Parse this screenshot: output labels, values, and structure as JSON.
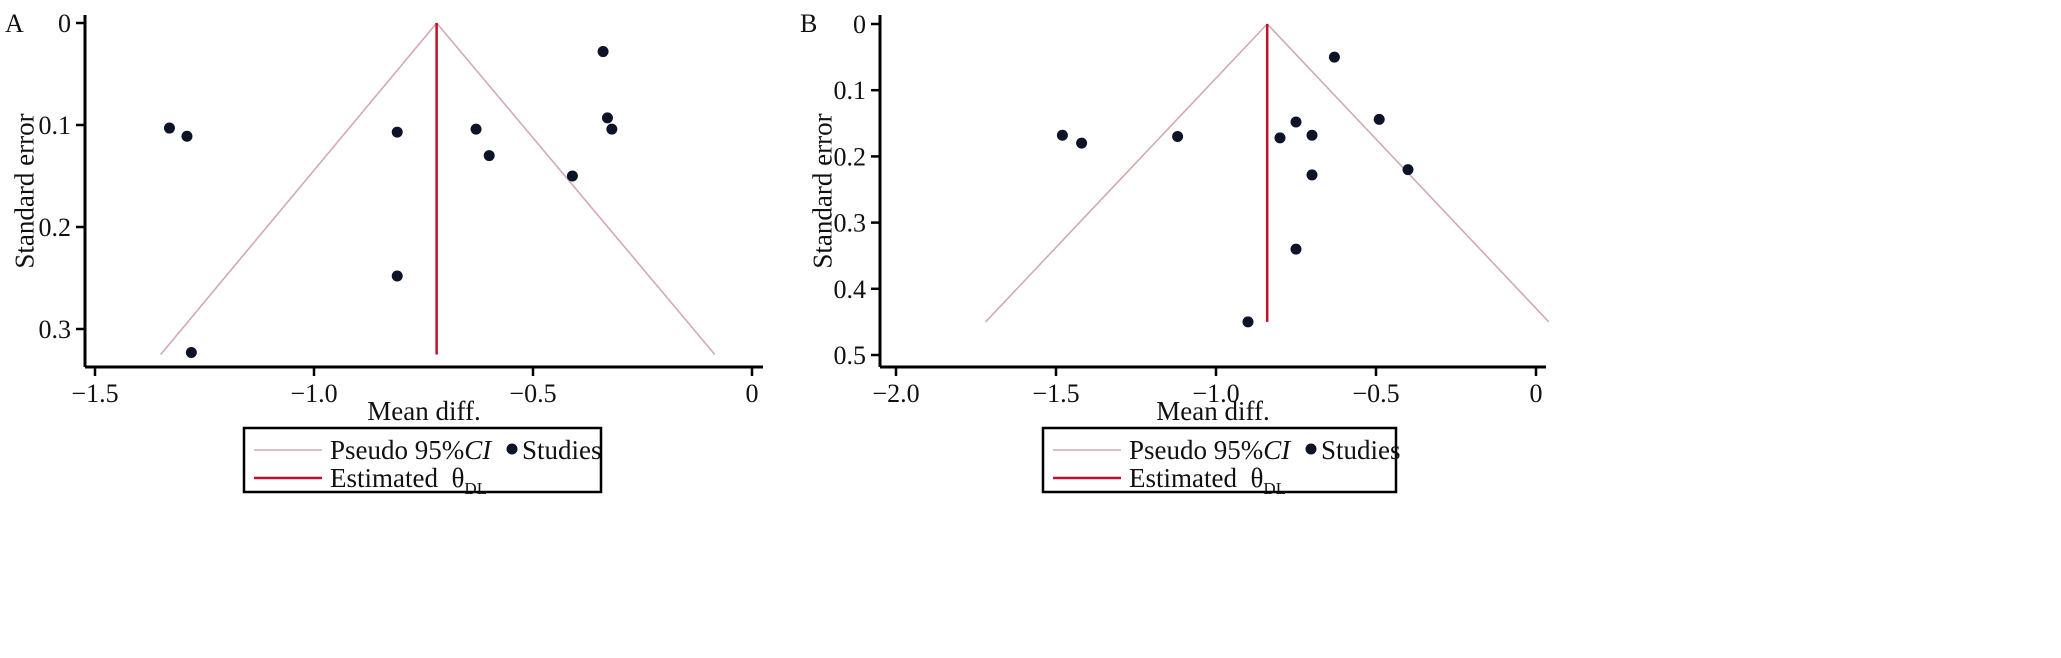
{
  "colors": {
    "funnel": "#d4a9b0",
    "estimate": "#c0112b",
    "points": "#0e1428",
    "axis": "#000000"
  },
  "chart_data": [
    {
      "type": "scatter",
      "panel_label": "A",
      "xlabel": "Mean diff.",
      "ylabel": "Standard error",
      "xlim": [
        -1.5,
        0
      ],
      "ylim": [
        0,
        0.33
      ],
      "y_reversed": true,
      "xticks": [
        -1.5,
        -1.0,
        -0.5,
        0
      ],
      "xtick_labels": [
        "−1.5",
        "−1.0",
        "−0.5",
        "0"
      ],
      "yticks": [
        0,
        0.1,
        0.2,
        0.3
      ],
      "ytick_labels": [
        "0",
        "0.1",
        "0.2",
        "0.3"
      ],
      "grid": false,
      "estimate": -0.72,
      "funnel": {
        "apex": [
          -0.72,
          0
        ],
        "left_base": [
          -1.35,
          0.325
        ],
        "right_base": [
          -0.085,
          0.325
        ]
      },
      "series": [
        {
          "name": "Studies",
          "x": [
            -0.34,
            -0.33,
            -0.32,
            -1.33,
            -1.29,
            -0.81,
            -0.63,
            -0.6,
            -0.41,
            -0.81,
            -1.28
          ],
          "y": [
            0.028,
            0.093,
            0.104,
            0.103,
            0.111,
            0.107,
            0.104,
            0.13,
            0.15,
            0.248,
            0.323
          ]
        }
      ],
      "legend": {
        "position": "bottom",
        "items": [
          {
            "label": "Pseudo 95%",
            "label_italic": "CI",
            "kind": "line-funnel"
          },
          {
            "label": "Studies",
            "kind": "point"
          },
          {
            "label": "Estimated  θ",
            "label_sub": "DL",
            "kind": "line-estimate"
          }
        ]
      }
    },
    {
      "type": "scatter",
      "panel_label": "B",
      "xlabel": "Mean diff.",
      "ylabel": "Standard error",
      "xlim": [
        -2.0,
        0
      ],
      "ylim": [
        0,
        0.5
      ],
      "y_reversed": true,
      "xticks": [
        -2.0,
        -1.5,
        -1.0,
        -0.5,
        0
      ],
      "xtick_labels": [
        "−2.0",
        "−1.5",
        "−1.0",
        "−0.5",
        "0"
      ],
      "yticks": [
        0,
        0.1,
        0.2,
        0.3,
        0.4,
        0.5
      ],
      "ytick_labels": [
        "0",
        "0.1",
        "0.2",
        "0.3",
        "0.4",
        "0.5"
      ],
      "grid": false,
      "estimate": -0.84,
      "funnel": {
        "apex": [
          -0.84,
          0
        ],
        "left_base": [
          -1.72,
          0.45
        ],
        "right_base": [
          0.04,
          0.45
        ]
      },
      "series": [
        {
          "name": "Studies",
          "x": [
            -0.63,
            -0.49,
            -0.75,
            -0.7,
            -0.8,
            -1.48,
            -1.42,
            -1.12,
            -0.4,
            -0.7,
            -0.75,
            -0.9
          ],
          "y": [
            0.05,
            0.144,
            0.148,
            0.168,
            0.172,
            0.168,
            0.18,
            0.17,
            0.22,
            0.228,
            0.34,
            0.45
          ]
        }
      ],
      "legend": {
        "position": "bottom",
        "items": [
          {
            "label": "Pseudo 95%",
            "label_italic": "CI",
            "kind": "line-funnel"
          },
          {
            "label": "Studies",
            "kind": "point"
          },
          {
            "label": "Estimated  θ",
            "label_sub": "DL",
            "kind": "line-estimate"
          }
        ]
      }
    }
  ]
}
